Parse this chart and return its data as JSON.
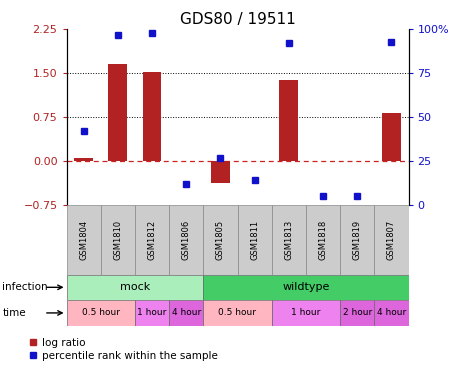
{
  "title": "GDS80 / 19511",
  "samples": [
    "GSM1804",
    "GSM1810",
    "GSM1812",
    "GSM1806",
    "GSM1805",
    "GSM1811",
    "GSM1813",
    "GSM1818",
    "GSM1819",
    "GSM1807"
  ],
  "log_ratio": [
    0.05,
    1.65,
    1.52,
    0.0,
    -0.38,
    0.0,
    1.38,
    0.0,
    0.0,
    0.82
  ],
  "percentile": [
    42,
    97,
    98,
    12,
    27,
    14,
    92,
    5,
    5,
    93
  ],
  "ylim_left": [
    -0.75,
    2.25
  ],
  "ylim_right": [
    0,
    100
  ],
  "yticks_left": [
    -0.75,
    0,
    0.75,
    1.5,
    2.25
  ],
  "yticks_right": [
    0,
    25,
    50,
    75,
    100
  ],
  "hlines": [
    0,
    0.75,
    1.5
  ],
  "bar_color": "#b22222",
  "dot_color": "#1111cc",
  "zero_line_color": "#cc2222",
  "infection_groups": [
    {
      "label": "mock",
      "start": 0,
      "end": 4,
      "color": "#aaeebb"
    },
    {
      "label": "wildtype",
      "start": 4,
      "end": 10,
      "color": "#44cc66"
    }
  ],
  "time_groups": [
    {
      "label": "0.5 hour",
      "start": 0,
      "end": 2,
      "color": "#ffb6c1"
    },
    {
      "label": "1 hour",
      "start": 2,
      "end": 3,
      "color": "#ee82ee"
    },
    {
      "label": "4 hour",
      "start": 3,
      "end": 4,
      "color": "#dd66dd"
    },
    {
      "label": "0.5 hour",
      "start": 4,
      "end": 6,
      "color": "#ffb6c1"
    },
    {
      "label": "1 hour",
      "start": 6,
      "end": 8,
      "color": "#ee82ee"
    },
    {
      "label": "2 hour",
      "start": 8,
      "end": 9,
      "color": "#dd66dd"
    },
    {
      "label": "4 hour",
      "start": 9,
      "end": 10,
      "color": "#dd66dd"
    }
  ],
  "legend_labels": [
    "log ratio",
    "percentile rank within the sample"
  ],
  "sample_bg": "#cccccc"
}
